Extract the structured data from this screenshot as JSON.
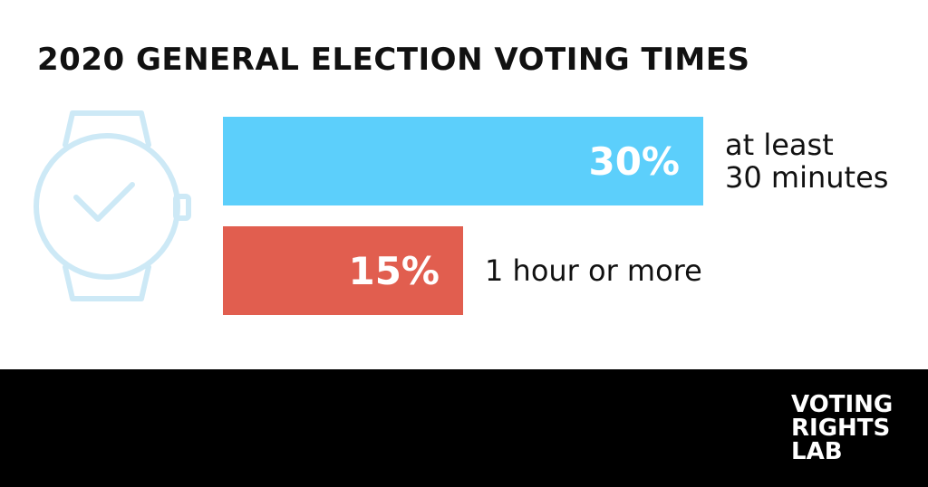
{
  "title": "2020 GENERAL ELECTION VOTING TIMES",
  "icon": "wristwatch-icon",
  "colors": {
    "bar_30": "#5ccffb",
    "bar_15": "#e15e4f",
    "watch": "#cde9f6",
    "footer": "#000000"
  },
  "chart_data": {
    "type": "bar",
    "orientation": "horizontal",
    "title": "2020 GENERAL ELECTION VOTING TIMES",
    "categories": [
      "at least 30 minutes",
      "1 hour or more"
    ],
    "category_lines": [
      [
        "at least",
        "30 minutes"
      ],
      [
        "1 hour or more"
      ]
    ],
    "values": [
      30,
      15
    ],
    "value_labels": [
      "30%",
      "15%"
    ],
    "colors": [
      "#5ccffb",
      "#e15e4f"
    ],
    "xlim": [
      0,
      30
    ],
    "grid": false,
    "legend": "none"
  },
  "footer": {
    "logo_lines": [
      "VOTING",
      "RIGHTS",
      "LAB"
    ]
  }
}
